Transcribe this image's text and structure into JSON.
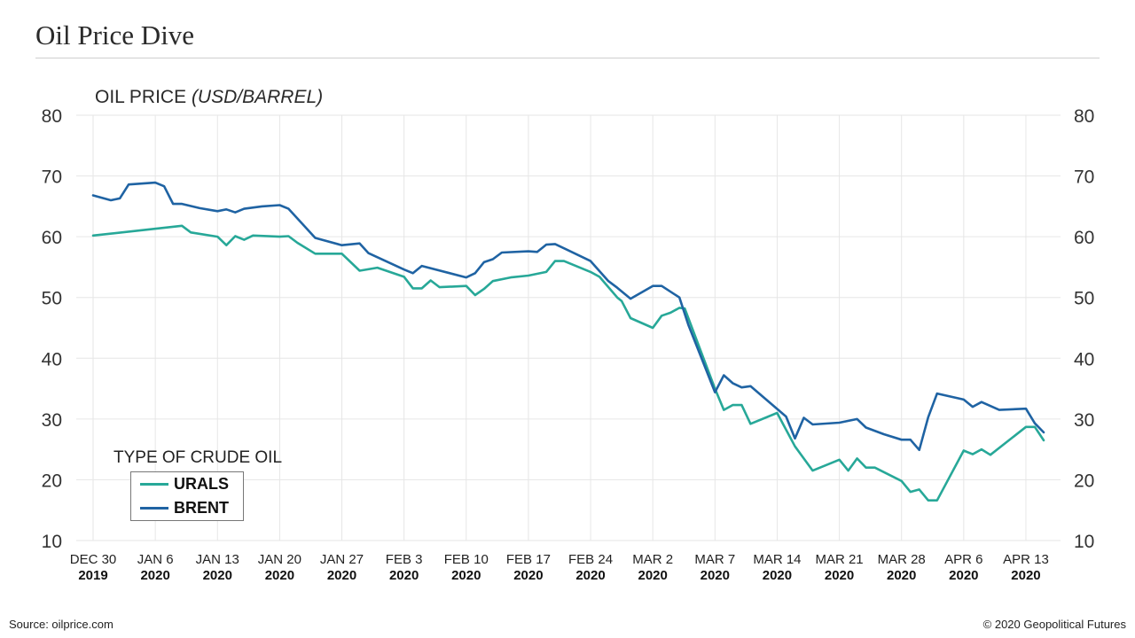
{
  "title": "Oil Price Dive",
  "footer": {
    "source": "Source: oilprice.com",
    "copyright": "© 2020 Geopolitical Futures"
  },
  "chart_data": {
    "type": "line",
    "ylabel": "OIL PRICE",
    "ylabel_unit": "(USD/BARREL)",
    "ylim": [
      10,
      80
    ],
    "yticks": [
      10,
      20,
      30,
      40,
      50,
      60,
      70,
      80
    ],
    "x_ticks": [
      {
        "line1": "DEC 30",
        "line2": "2019",
        "day": 0
      },
      {
        "line1": "JAN 6",
        "line2": "2020",
        "day": 7
      },
      {
        "line1": "JAN 13",
        "line2": "2020",
        "day": 14
      },
      {
        "line1": "JAN 20",
        "line2": "2020",
        "day": 21
      },
      {
        "line1": "JAN 27",
        "line2": "2020",
        "day": 28
      },
      {
        "line1": "FEB 3",
        "line2": "2020",
        "day": 35
      },
      {
        "line1": "FEB 10",
        "line2": "2020",
        "day": 42
      },
      {
        "line1": "FEB 17",
        "line2": "2020",
        "day": 49
      },
      {
        "line1": "FEB 24",
        "line2": "2020",
        "day": 56
      },
      {
        "line1": "MAR 2",
        "line2": "2020",
        "day": 63
      },
      {
        "line1": "MAR 7",
        "line2": "2020",
        "day": 70
      },
      {
        "line1": "MAR 14",
        "line2": "2020",
        "day": 77
      },
      {
        "line1": "MAR 21",
        "line2": "2020",
        "day": 84
      },
      {
        "line1": "MAR 28",
        "line2": "2020",
        "day": 91
      },
      {
        "line1": "APR 6",
        "line2": "2020",
        "day": 98
      },
      {
        "line1": "APR 13",
        "line2": "2020",
        "day": 105
      }
    ],
    "grid": true,
    "legend": {
      "title": "TYPE OF CRUDE OIL",
      "placement": "bottom-left"
    },
    "series": [
      {
        "name": "URALS",
        "color": "#27a898",
        "points": [
          [
            0,
            60.2
          ],
          [
            10,
            61.8
          ],
          [
            11,
            60.7
          ],
          [
            14,
            60.0
          ],
          [
            15,
            58.6
          ],
          [
            16,
            60.1
          ],
          [
            17,
            59.5
          ],
          [
            18,
            60.2
          ],
          [
            21,
            60.0
          ],
          [
            22,
            60.1
          ],
          [
            23,
            59.0
          ],
          [
            25,
            57.2
          ],
          [
            28,
            57.2
          ],
          [
            30,
            54.4
          ],
          [
            32,
            54.9
          ],
          [
            35,
            53.4
          ],
          [
            36,
            51.5
          ],
          [
            37,
            51.5
          ],
          [
            38,
            52.8
          ],
          [
            39,
            51.7
          ],
          [
            42,
            51.9
          ],
          [
            43,
            50.4
          ],
          [
            44,
            51.4
          ],
          [
            45,
            52.7
          ],
          [
            47,
            53.3
          ],
          [
            49,
            53.6
          ],
          [
            51,
            54.2
          ],
          [
            52,
            56.0
          ],
          [
            53,
            56.0
          ],
          [
            56,
            54.2
          ],
          [
            57,
            53.4
          ],
          [
            59,
            50.0
          ],
          [
            59.5,
            49.4
          ],
          [
            60.5,
            46.6
          ],
          [
            63,
            45.0
          ],
          [
            64,
            47.0
          ],
          [
            65,
            47.5
          ],
          [
            66,
            48.3
          ],
          [
            66.6,
            48.2
          ],
          [
            70,
            35.0
          ],
          [
            71,
            31.5
          ],
          [
            72,
            32.3
          ],
          [
            73,
            32.3
          ],
          [
            74,
            29.2
          ],
          [
            77,
            31.0
          ],
          [
            79,
            25.5
          ],
          [
            81,
            21.5
          ],
          [
            84,
            23.3
          ],
          [
            85,
            21.5
          ],
          [
            86,
            23.5
          ],
          [
            87,
            22.0
          ],
          [
            88,
            22.0
          ],
          [
            91,
            19.8
          ],
          [
            92,
            18.0
          ],
          [
            93,
            18.4
          ],
          [
            94,
            16.6
          ],
          [
            95,
            16.6
          ],
          [
            98,
            24.8
          ],
          [
            99,
            24.2
          ],
          [
            100,
            25.0
          ],
          [
            101,
            24.1
          ],
          [
            105,
            28.7
          ],
          [
            106,
            28.7
          ],
          [
            107,
            26.5
          ]
        ]
      },
      {
        "name": "BRENT",
        "color": "#1f63a3",
        "points": [
          [
            0,
            66.8
          ],
          [
            2,
            66.0
          ],
          [
            3,
            66.3
          ],
          [
            4,
            68.6
          ],
          [
            7,
            68.9
          ],
          [
            8,
            68.3
          ],
          [
            9,
            65.4
          ],
          [
            10,
            65.4
          ],
          [
            12,
            64.7
          ],
          [
            14,
            64.2
          ],
          [
            15,
            64.5
          ],
          [
            16,
            64.0
          ],
          [
            17,
            64.6
          ],
          [
            19,
            65.0
          ],
          [
            21,
            65.2
          ],
          [
            22,
            64.6
          ],
          [
            25,
            59.8
          ],
          [
            28,
            58.6
          ],
          [
            30,
            58.9
          ],
          [
            31,
            57.3
          ],
          [
            35,
            54.6
          ],
          [
            36,
            54.0
          ],
          [
            37,
            55.2
          ],
          [
            42,
            53.3
          ],
          [
            43,
            54.0
          ],
          [
            44,
            55.8
          ],
          [
            45,
            56.3
          ],
          [
            46,
            57.4
          ],
          [
            49,
            57.6
          ],
          [
            50,
            57.5
          ],
          [
            51,
            58.7
          ],
          [
            52,
            58.8
          ],
          [
            56,
            56.0
          ],
          [
            58,
            52.7
          ],
          [
            59,
            51.6
          ],
          [
            60.5,
            49.8
          ],
          [
            63,
            51.9
          ],
          [
            64,
            51.9
          ],
          [
            66,
            50.0
          ],
          [
            67,
            45.5
          ],
          [
            70,
            34.4
          ],
          [
            71,
            37.2
          ],
          [
            72,
            35.9
          ],
          [
            73,
            35.2
          ],
          [
            74,
            35.4
          ],
          [
            78,
            30.4
          ],
          [
            79,
            26.8
          ],
          [
            80,
            30.2
          ],
          [
            81,
            29.1
          ],
          [
            84,
            29.4
          ],
          [
            86,
            30.0
          ],
          [
            87,
            28.6
          ],
          [
            89,
            27.5
          ],
          [
            91,
            26.6
          ],
          [
            92,
            26.6
          ],
          [
            93,
            24.9
          ],
          [
            94,
            30.3
          ],
          [
            95,
            34.2
          ],
          [
            98,
            33.2
          ],
          [
            99,
            32.0
          ],
          [
            100,
            32.8
          ],
          [
            102,
            31.5
          ],
          [
            105,
            31.7
          ],
          [
            106,
            29.3
          ],
          [
            107,
            27.8
          ]
        ]
      }
    ]
  }
}
